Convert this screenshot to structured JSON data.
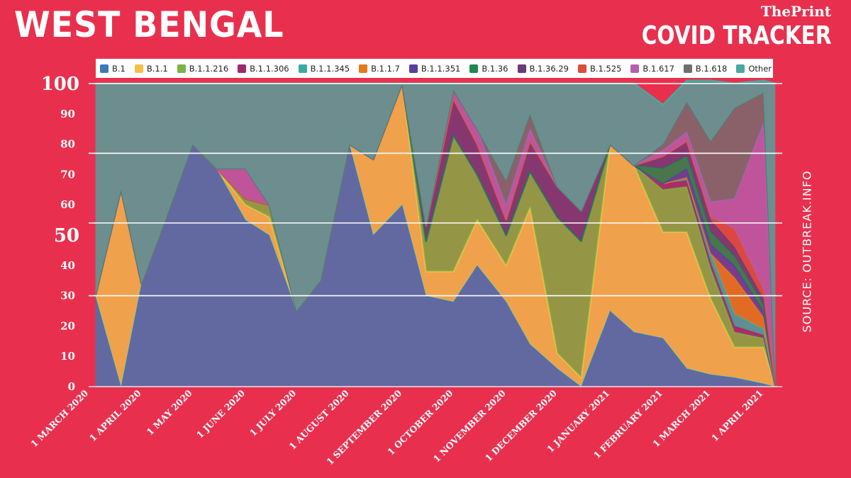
{
  "header": {
    "title": "WEST BENGAL",
    "brand": "ThePrint",
    "subtitle": "COVID TRACKER",
    "source": "SOURCE: OUTBREAK.INFO"
  },
  "chart_data": {
    "type": "area",
    "stacked": true,
    "legend_position": "top",
    "ylim": [
      0,
      100
    ],
    "y_ticks": [
      0,
      10,
      20,
      30,
      40,
      50,
      60,
      70,
      80,
      90,
      100
    ],
    "y_ticks_emphasized": [
      50,
      100
    ],
    "reference_lines": [
      30,
      54,
      77,
      100
    ],
    "xlim": [
      "2020-03-01",
      "2021-04-12"
    ],
    "x_tick_labels": [
      {
        "date": "2020-03-01",
        "label": "1 MARCH 2020"
      },
      {
        "date": "2020-04-01",
        "label": "1 APRIL 2020"
      },
      {
        "date": "2020-05-01",
        "label": "1 MAY 2020"
      },
      {
        "date": "2020-06-01",
        "label": "1 JUNE 2020"
      },
      {
        "date": "2020-07-01",
        "label": "1 JULY 2020"
      },
      {
        "date": "2020-08-01",
        "label": "1 AUGUST 2020"
      },
      {
        "date": "2020-09-01",
        "label": "1 SEPTEMBER 2020"
      },
      {
        "date": "2020-10-01",
        "label": "1 OCTOBER 2020"
      },
      {
        "date": "2020-11-01",
        "label": "1 NOVEMBER 2020"
      },
      {
        "date": "2020-12-01",
        "label": "1 DECEMBER 2020"
      },
      {
        "date": "2021-01-01",
        "label": "1 JANUARY 2021"
      },
      {
        "date": "2021-02-01",
        "label": "1 FEBRUARY 2021"
      },
      {
        "date": "2021-03-01",
        "label": "1 MARCH 2021"
      },
      {
        "date": "2021-04-01",
        "label": "1 APRIL 2021"
      }
    ],
    "x": [
      "2020-03-05",
      "2020-03-20",
      "2020-04-01",
      "2020-04-15",
      "2020-05-01",
      "2020-05-15",
      "2020-06-01",
      "2020-06-15",
      "2020-07-01",
      "2020-07-15",
      "2020-08-01",
      "2020-08-15",
      "2020-09-01",
      "2020-09-15",
      "2020-10-01",
      "2020-10-15",
      "2020-11-01",
      "2020-11-15",
      "2020-12-01",
      "2020-12-15",
      "2021-01-01",
      "2021-01-15",
      "2021-02-01",
      "2021-02-15",
      "2021-03-01",
      "2021-03-15",
      "2021-04-01",
      "2021-04-08"
    ],
    "series": [
      {
        "name": "B.1",
        "color": "#3c7ab8",
        "values": [
          30,
          0,
          34,
          55,
          80,
          72,
          55,
          50,
          25,
          35,
          80,
          50,
          60,
          30,
          28,
          40,
          28,
          14,
          6,
          0,
          25,
          18,
          16,
          6,
          4,
          3,
          1,
          0
        ]
      },
      {
        "name": "B.1.1",
        "color": "#f2c14a",
        "values": [
          0,
          65,
          0,
          0,
          0,
          0,
          5,
          6,
          0,
          0,
          0,
          25,
          40,
          8,
          10,
          15,
          12,
          45,
          5,
          3,
          55,
          55,
          35,
          45,
          25,
          10,
          12,
          0
        ]
      },
      {
        "name": "B.1.1.216",
        "color": "#7cb342",
        "values": [
          0,
          0,
          0,
          0,
          0,
          0,
          2,
          4,
          0,
          0,
          0,
          0,
          0,
          10,
          45,
          15,
          10,
          12,
          45,
          45,
          0,
          0,
          14,
          15,
          10,
          5,
          3,
          0
        ]
      },
      {
        "name": "B.1.1.306",
        "color": "#9e2a6b",
        "values": [
          0,
          0,
          0,
          0,
          0,
          0,
          0,
          0,
          0,
          0,
          0,
          0,
          0,
          0,
          0,
          0,
          0,
          0,
          0,
          0,
          0,
          0,
          2,
          2,
          2,
          2,
          1,
          0
        ]
      },
      {
        "name": "B.1.1.345",
        "color": "#3aa9a4",
        "values": [
          0,
          0,
          0,
          0,
          0,
          0,
          0,
          0,
          0,
          0,
          0,
          0,
          0,
          0,
          0,
          0,
          0,
          0,
          0,
          0,
          0,
          0,
          0,
          1,
          3,
          4,
          2,
          0
        ]
      },
      {
        "name": "B.1.1.7",
        "color": "#e07b1a",
        "values": [
          0,
          0,
          0,
          0,
          0,
          0,
          0,
          0,
          0,
          0,
          0,
          0,
          0,
          0,
          0,
          0,
          0,
          0,
          0,
          0,
          0,
          0,
          0,
          0,
          0,
          12,
          4,
          0
        ]
      },
      {
        "name": "B.1.1.351",
        "color": "#5b3f9e",
        "values": [
          0,
          0,
          0,
          0,
          0,
          0,
          0,
          0,
          0,
          0,
          0,
          0,
          0,
          0,
          0,
          0,
          0,
          0,
          0,
          0,
          0,
          0,
          0,
          3,
          3,
          4,
          2,
          0
        ]
      },
      {
        "name": "B.1.36",
        "color": "#1e8a4c",
        "values": [
          0,
          0,
          0,
          0,
          0,
          0,
          0,
          0,
          0,
          0,
          0,
          0,
          0,
          0,
          0,
          0,
          0,
          0,
          0,
          0,
          0,
          0,
          5,
          4,
          4,
          3,
          2,
          0
        ]
      },
      {
        "name": "B.1.36.29",
        "color": "#6b3a78",
        "values": [
          0,
          0,
          0,
          0,
          0,
          0,
          0,
          0,
          0,
          0,
          0,
          0,
          0,
          5,
          12,
          10,
          5,
          10,
          10,
          10,
          0,
          0,
          4,
          5,
          4,
          3,
          2,
          0
        ]
      },
      {
        "name": "B.1.525",
        "color": "#d94f3d",
        "values": [
          0,
          0,
          0,
          0,
          0,
          0,
          0,
          0,
          0,
          0,
          0,
          0,
          0,
          0,
          0,
          0,
          0,
          0,
          0,
          0,
          0,
          0,
          0,
          0,
          1,
          6,
          3,
          0
        ]
      },
      {
        "name": "B.1.617",
        "color": "#b45fb0",
        "values": [
          0,
          0,
          0,
          0,
          0,
          0,
          10,
          0,
          0,
          0,
          0,
          0,
          0,
          0,
          3,
          5,
          5,
          4,
          0,
          0,
          0,
          0,
          2,
          3,
          5,
          10,
          55,
          0
        ]
      },
      {
        "name": "B.1.618",
        "color": "#6f6f6f",
        "values": [
          0,
          0,
          0,
          0,
          0,
          0,
          0,
          0,
          0,
          0,
          0,
          0,
          0,
          0,
          0,
          0,
          8,
          5,
          0,
          0,
          0,
          0,
          2,
          10,
          20,
          30,
          10,
          0
        ]
      },
      {
        "name": "Other",
        "color": "#4aa8a0",
        "values": [
          70,
          35,
          66,
          45,
          20,
          28,
          28,
          40,
          75,
          65,
          20,
          25,
          0,
          47,
          2,
          15,
          32,
          10,
          34,
          42,
          20,
          27,
          13,
          7,
          20,
          8,
          4,
          100
        ]
      }
    ]
  }
}
